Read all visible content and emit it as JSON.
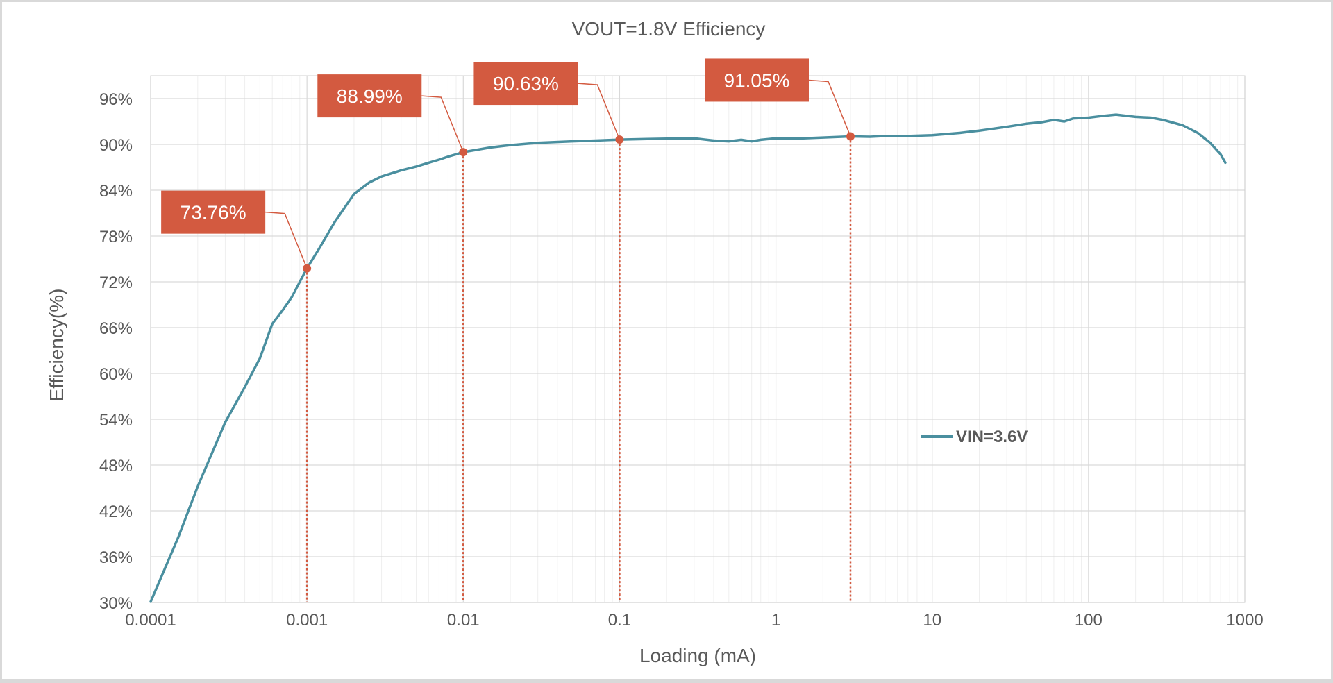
{
  "chart_data": {
    "type": "line",
    "title": "VOUT=1.8V Efficiency",
    "xlabel": "Loading (mA)",
    "ylabel": "Efficiency(%)",
    "xscale": "log",
    "xlim": [
      0.0001,
      1000
    ],
    "ylim": [
      30,
      99
    ],
    "x_ticks": [
      "0.0001",
      "0.001",
      "0.01",
      "0.1",
      "1",
      "10",
      "100",
      "1000"
    ],
    "y_ticks": [
      "30%",
      "36%",
      "42%",
      "48%",
      "54%",
      "60%",
      "66%",
      "72%",
      "78%",
      "84%",
      "90%",
      "96%"
    ],
    "grid": true,
    "legend_position": "right, middle of plot",
    "series": [
      {
        "name": "VIN=3.6V",
        "color": "#4a8f9f",
        "x": [
          0.0001,
          0.00015,
          0.0002,
          0.0003,
          0.0004,
          0.0005,
          0.0006,
          0.0007,
          0.0008,
          0.0009,
          0.001,
          0.0012,
          0.0015,
          0.002,
          0.0025,
          0.003,
          0.004,
          0.005,
          0.006,
          0.007,
          0.008,
          0.009,
          0.01,
          0.015,
          0.02,
          0.03,
          0.05,
          0.07,
          0.1,
          0.15,
          0.2,
          0.3,
          0.4,
          0.5,
          0.6,
          0.7,
          0.8,
          1,
          1.5,
          2,
          3,
          4,
          5,
          7,
          10,
          15,
          20,
          30,
          40,
          50,
          60,
          70,
          80,
          100,
          120,
          150,
          200,
          250,
          300,
          400,
          500,
          600,
          700,
          750
        ],
        "values": [
          30.1,
          38.5,
          45.2,
          53.6,
          58.2,
          62.0,
          66.5,
          68.3,
          70.0,
          72.0,
          73.76,
          76.4,
          79.8,
          83.5,
          85.0,
          85.8,
          86.6,
          87.1,
          87.6,
          88.0,
          88.4,
          88.7,
          88.99,
          89.6,
          89.9,
          90.2,
          90.4,
          90.5,
          90.63,
          90.7,
          90.75,
          90.8,
          90.5,
          90.4,
          90.6,
          90.4,
          90.6,
          90.8,
          90.8,
          90.9,
          91.05,
          91.0,
          91.1,
          91.1,
          91.2,
          91.5,
          91.8,
          92.3,
          92.7,
          92.9,
          93.2,
          93.0,
          93.4,
          93.5,
          93.7,
          93.9,
          93.6,
          93.5,
          93.2,
          92.5,
          91.5,
          90.2,
          88.7,
          87.6
        ]
      }
    ],
    "annotations": [
      {
        "x": 0.001,
        "y": 73.76,
        "label": "73.76%"
      },
      {
        "x": 0.01,
        "y": 88.99,
        "label": "88.99%"
      },
      {
        "x": 0.1,
        "y": 90.63,
        "label": "90.63%"
      },
      {
        "x": 3,
        "y": 91.05,
        "label": "91.05%"
      }
    ],
    "annotation_color": "#d35a40"
  }
}
